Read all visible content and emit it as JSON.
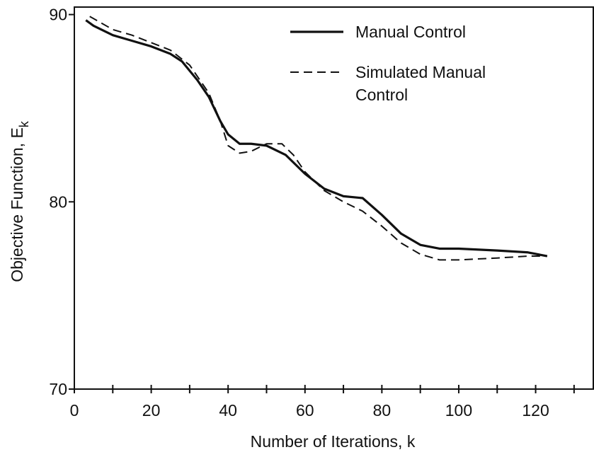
{
  "chart_data": {
    "type": "line",
    "x_label": "Number of Iterations, k",
    "y_label": "Objective Function, E",
    "y_label_subscript": "k",
    "xlim": [
      0,
      135
    ],
    "ylim": [
      70,
      90.4
    ],
    "xticks": [
      0,
      20,
      40,
      60,
      80,
      100,
      120
    ],
    "x_minor_ticks": [
      10,
      30,
      50,
      70,
      90,
      110,
      130
    ],
    "yticks": [
      70,
      80,
      90
    ],
    "legend": "top-right",
    "series": [
      {
        "name": "Manual Control",
        "color": "#111111",
        "dash": "solid",
        "x": [
          3,
          5,
          10,
          15,
          20,
          25,
          28,
          32,
          35,
          38,
          40,
          43,
          46,
          50,
          55,
          60,
          65,
          70,
          75,
          80,
          85,
          90,
          95,
          100,
          110,
          118,
          123
        ],
        "values": [
          89.7,
          89.4,
          88.9,
          88.6,
          88.3,
          87.9,
          87.5,
          86.5,
          85.6,
          84.3,
          83.6,
          83.1,
          83.1,
          83.0,
          82.5,
          81.5,
          80.7,
          80.3,
          80.2,
          79.3,
          78.3,
          77.7,
          77.5,
          77.5,
          77.4,
          77.3,
          77.1
        ]
      },
      {
        "name": "Simulated Manual Control",
        "color": "#111111",
        "dash": "dashed",
        "x": [
          4,
          10,
          15,
          20,
          25,
          30,
          35,
          38,
          40,
          43,
          46,
          50,
          54,
          57,
          60,
          65,
          70,
          75,
          80,
          85,
          90,
          95,
          100,
          110,
          118,
          123
        ],
        "values": [
          89.9,
          89.2,
          88.9,
          88.5,
          88.1,
          87.3,
          85.8,
          84.3,
          83.0,
          82.6,
          82.7,
          83.1,
          83.1,
          82.5,
          81.6,
          80.6,
          80.0,
          79.5,
          78.7,
          77.8,
          77.2,
          76.9,
          76.9,
          77.0,
          77.1,
          77.1
        ]
      }
    ]
  }
}
